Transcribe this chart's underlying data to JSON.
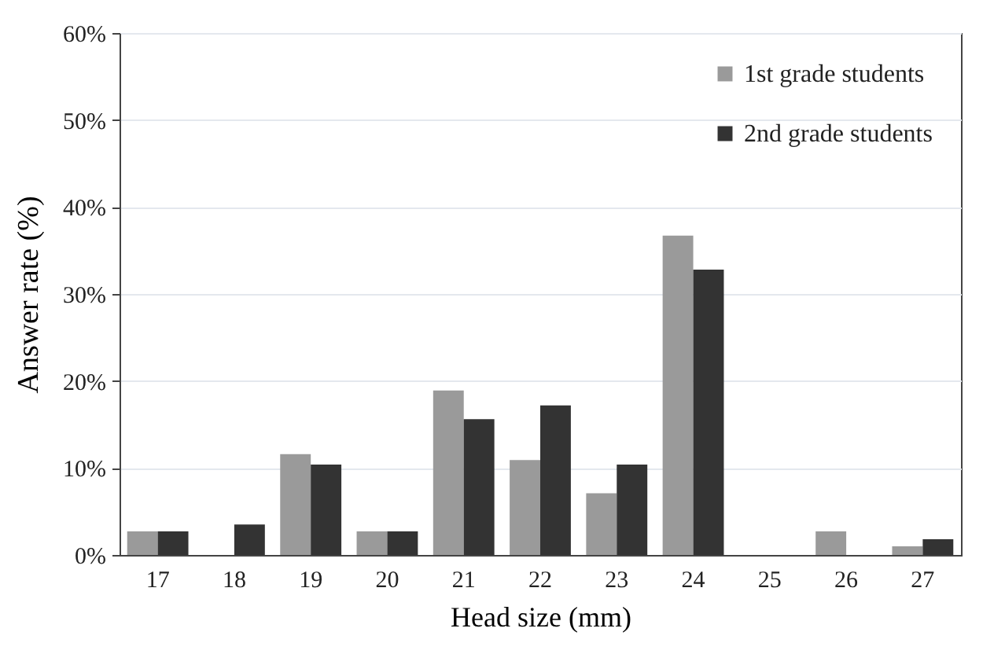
{
  "chart_data": {
    "type": "bar",
    "xlabel": "Head size (mm)",
    "ylabel": "Answer rate  (%)",
    "categories": [
      "17",
      "18",
      "19",
      "20",
      "21",
      "22",
      "23",
      "24",
      "25",
      "26",
      "27"
    ],
    "series": [
      {
        "name": "1st grade students",
        "color": "#9a9a9a",
        "values": [
          2.7,
          0,
          11.6,
          2.7,
          18.9,
          10.9,
          7.1,
          36.7,
          0,
          2.7,
          1.0
        ]
      },
      {
        "name": "2nd grade students",
        "color": "#333333",
        "values": [
          2.7,
          3.5,
          10.4,
          2.7,
          15.6,
          17.2,
          10.4,
          32.8,
          0,
          0,
          1.8
        ]
      }
    ],
    "ylim": [
      0,
      60
    ],
    "yticks": [
      {
        "value": 0,
        "label": "0%"
      },
      {
        "value": 10,
        "label": "10%"
      },
      {
        "value": 20,
        "label": "20%"
      },
      {
        "value": 30,
        "label": "30%"
      },
      {
        "value": 40,
        "label": "40%"
      },
      {
        "value": 50,
        "label": "50%"
      },
      {
        "value": 60,
        "label": "60%"
      }
    ],
    "grid": "y",
    "legend": "top right"
  }
}
